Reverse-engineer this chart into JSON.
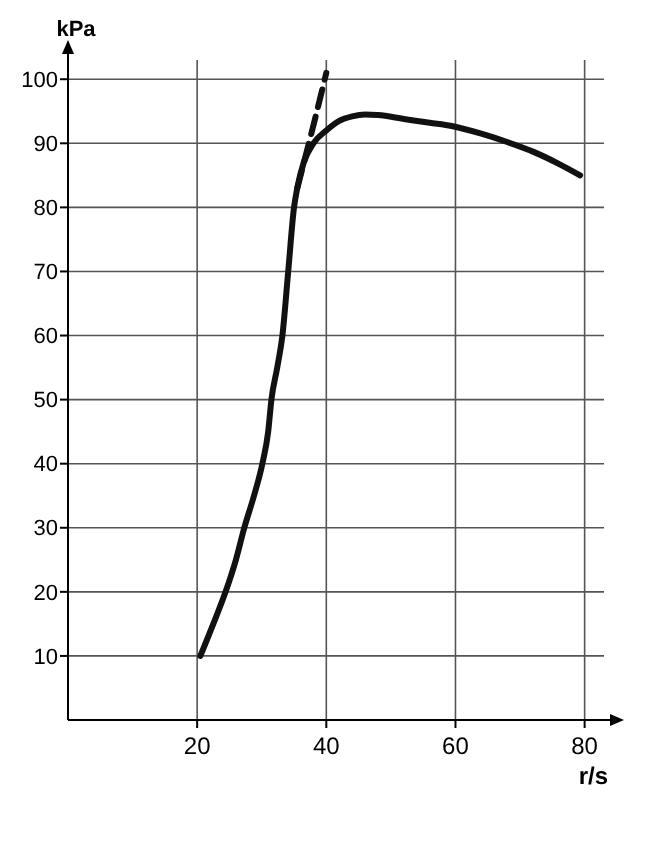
{
  "chart_data": {
    "type": "line",
    "xlabel": "r/s",
    "ylabel": "kPa",
    "xlim": [
      0,
      83
    ],
    "ylim": [
      0,
      103
    ],
    "xticks": [
      20,
      40,
      60,
      80
    ],
    "yticks": [
      10,
      20,
      30,
      40,
      50,
      60,
      70,
      80,
      90,
      100
    ],
    "grid": true,
    "series": [
      {
        "color": "#111111",
        "line_style": "solid",
        "x": [
          20.5,
          22.5,
          24.4,
          26,
          27.3,
          28.8,
          30.1,
          31,
          31.5,
          32.4,
          33.2,
          34.1,
          35,
          35.5,
          36.5,
          38,
          40,
          42,
          44,
          46,
          48,
          52,
          56,
          59.4,
          64,
          68,
          72,
          76,
          79.3
        ],
        "values": [
          10,
          15,
          20,
          25,
          30,
          35,
          40,
          45,
          50,
          55,
          60,
          70,
          80,
          83,
          87,
          90,
          92,
          93.5,
          94.2,
          94.5,
          94.4,
          93.8,
          93.2,
          92.7,
          91.5,
          90.2,
          88.7,
          86.8,
          85
        ]
      },
      {
        "color": "#111111",
        "line_style": "dashed",
        "x": [
          35.5,
          37.8,
          40
        ],
        "values": [
          83,
          92,
          101
        ]
      }
    ]
  }
}
